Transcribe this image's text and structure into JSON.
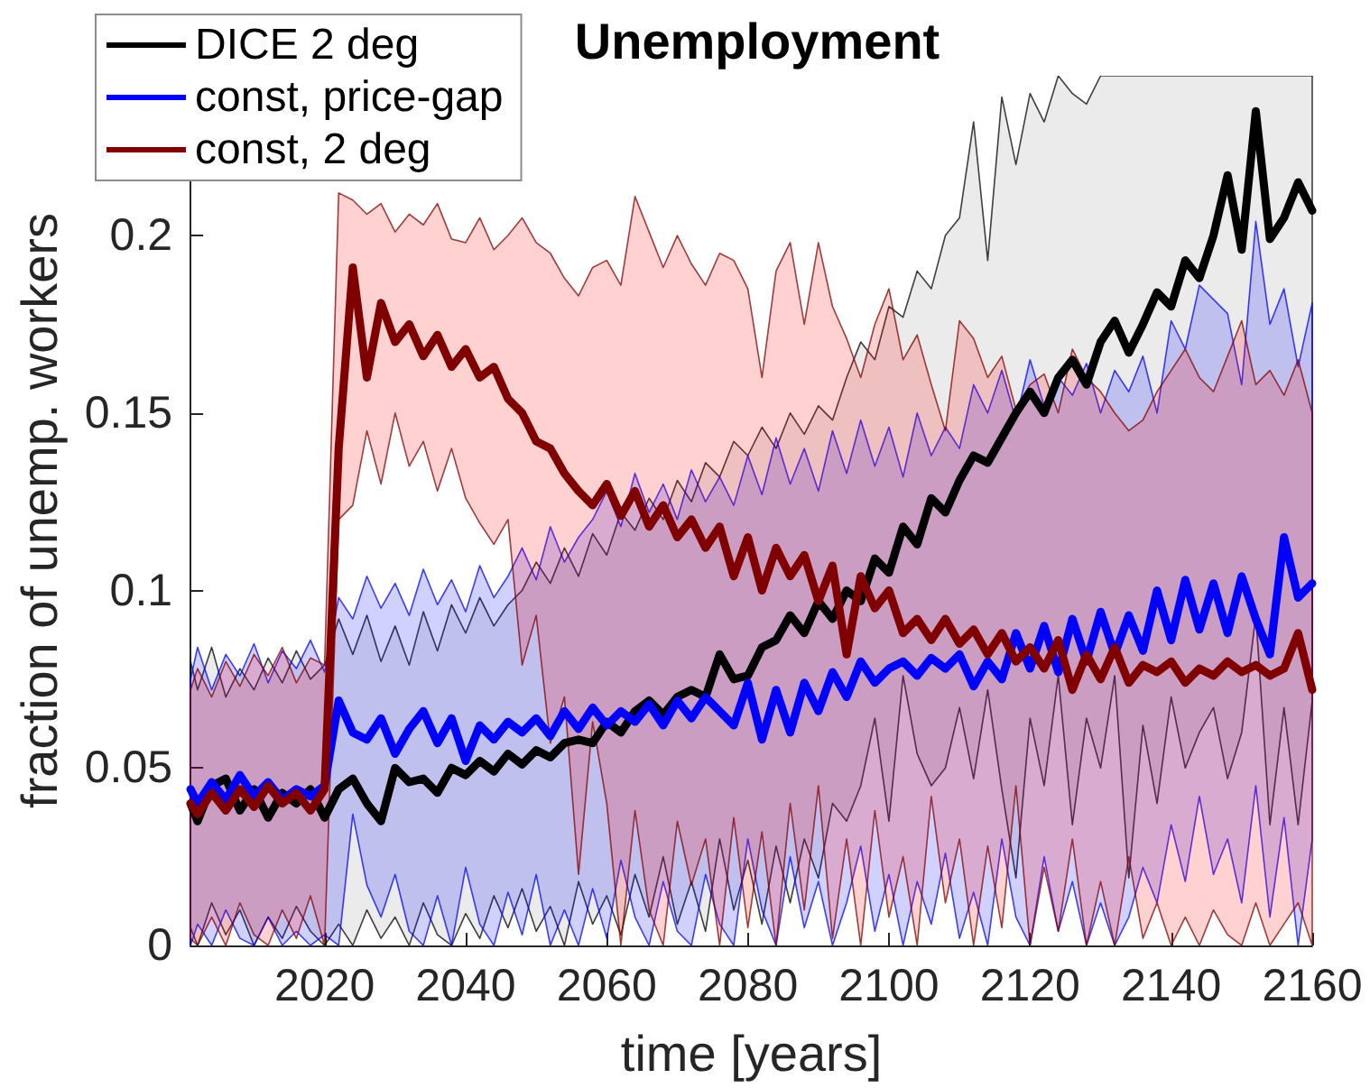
{
  "chart_data": {
    "type": "line",
    "title": "Unemployment",
    "xlabel": "time [years]",
    "ylabel": "fraction of unemp. workers",
    "x": [
      2001,
      2002,
      2004,
      2006,
      2008,
      2010,
      2012,
      2014,
      2016,
      2018,
      2020,
      2022,
      2024,
      2026,
      2028,
      2030,
      2032,
      2034,
      2036,
      2038,
      2040,
      2042,
      2044,
      2046,
      2048,
      2050,
      2052,
      2054,
      2056,
      2058,
      2060,
      2062,
      2064,
      2066,
      2068,
      2070,
      2072,
      2074,
      2076,
      2078,
      2080,
      2082,
      2084,
      2086,
      2088,
      2090,
      2092,
      2094,
      2096,
      2098,
      2100,
      2102,
      2104,
      2106,
      2108,
      2110,
      2112,
      2114,
      2116,
      2118,
      2120,
      2122,
      2124,
      2126,
      2128,
      2130,
      2132,
      2134,
      2136,
      2138,
      2140,
      2142,
      2144,
      2146,
      2148,
      2150,
      2152,
      2154,
      2156,
      2158,
      2160
    ],
    "xlim": [
      2001,
      2160
    ],
    "xticks": [
      2020,
      2040,
      2060,
      2080,
      2100,
      2120,
      2140,
      2160
    ],
    "ylim": [
      0,
      0.245
    ],
    "yticks": [
      0,
      0.05,
      0.1,
      0.15,
      0.2
    ],
    "grid": false,
    "legend": "top left",
    "marker": "none",
    "line_style": "solid",
    "series": [
      {
        "name": "DICE 2 deg",
        "color": "#000000",
        "values": [
          0.04,
          0.035,
          0.045,
          0.047,
          0.038,
          0.044,
          0.036,
          0.043,
          0.04,
          0.044,
          0.036,
          0.044,
          0.047,
          0.04,
          0.035,
          0.05,
          0.046,
          0.047,
          0.043,
          0.05,
          0.048,
          0.052,
          0.049,
          0.054,
          0.051,
          0.055,
          0.053,
          0.057,
          0.058,
          0.057,
          0.063,
          0.06,
          0.066,
          0.069,
          0.065,
          0.07,
          0.072,
          0.07,
          0.082,
          0.075,
          0.076,
          0.084,
          0.086,
          0.093,
          0.088,
          0.097,
          0.092,
          0.1,
          0.097,
          0.109,
          0.105,
          0.118,
          0.113,
          0.126,
          0.122,
          0.131,
          0.138,
          0.136,
          0.143,
          0.15,
          0.156,
          0.15,
          0.16,
          0.165,
          0.158,
          0.17,
          0.176,
          0.167,
          0.175,
          0.184,
          0.18,
          0.193,
          0.188,
          0.2,
          0.217,
          0.196,
          0.235,
          0.199,
          0.205,
          0.215,
          0.207
        ],
        "lower": [
          0.005,
          0,
          0.012,
          0.003,
          0.01,
          0,
          0.008,
          0.002,
          0.011,
          0.004,
          0,
          0.006,
          0,
          0.01,
          0.002,
          0.008,
          0,
          0.012,
          0.003,
          0,
          0.009,
          0.002,
          0.014,
          0.005,
          0.016,
          0.004,
          0.011,
          0,
          0.018,
          0.006,
          0.014,
          0.003,
          0.02,
          0.008,
          0.025,
          0.006,
          0.018,
          0.004,
          0.03,
          0.01,
          0.024,
          0.006,
          0.028,
          0.012,
          0.03,
          0.019,
          0.04,
          0.035,
          0.045,
          0.064,
          0.035,
          0.076,
          0.054,
          0.045,
          0.05,
          0.067,
          0.047,
          0.072,
          0.044,
          0.019,
          0.064,
          0.045,
          0.076,
          0.034,
          0.064,
          0.05,
          0.076,
          0.019,
          0.062,
          0.04,
          0.07,
          0.05,
          0.06,
          0.067,
          0.047,
          0.06,
          0.093,
          0.034,
          0.067,
          0.034,
          0.069
        ],
        "upper": [
          0.08,
          0.072,
          0.084,
          0.07,
          0.078,
          0.072,
          0.081,
          0.074,
          0.083,
          0.075,
          0.079,
          0.092,
          0.082,
          0.093,
          0.08,
          0.09,
          0.079,
          0.094,
          0.083,
          0.096,
          0.088,
          0.098,
          0.09,
          0.096,
          0.1,
          0.108,
          0.102,
          0.112,
          0.104,
          0.116,
          0.11,
          0.122,
          0.117,
          0.126,
          0.12,
          0.131,
          0.125,
          0.136,
          0.132,
          0.142,
          0.138,
          0.146,
          0.14,
          0.15,
          0.144,
          0.152,
          0.148,
          0.16,
          0.17,
          0.165,
          0.18,
          0.177,
          0.19,
          0.185,
          0.2,
          0.205,
          0.232,
          0.193,
          0.239,
          0.22,
          0.24,
          0.232,
          0.245,
          0.24,
          0.237,
          0.245,
          0.245,
          0.245,
          0.245,
          0.245,
          0.245,
          0.245,
          0.245,
          0.245,
          0.245,
          0.245,
          0.245,
          0.245,
          0.245,
          0.245,
          0.245
        ]
      },
      {
        "name": "const, price-gap",
        "color": "#0000ff",
        "values": [
          0.044,
          0.04,
          0.046,
          0.041,
          0.048,
          0.042,
          0.046,
          0.041,
          0.044,
          0.042,
          0.045,
          0.069,
          0.06,
          0.058,
          0.064,
          0.054,
          0.061,
          0.066,
          0.057,
          0.064,
          0.052,
          0.062,
          0.058,
          0.063,
          0.06,
          0.064,
          0.059,
          0.066,
          0.061,
          0.067,
          0.062,
          0.066,
          0.063,
          0.068,
          0.062,
          0.069,
          0.064,
          0.07,
          0.066,
          0.062,
          0.074,
          0.058,
          0.072,
          0.06,
          0.074,
          0.066,
          0.077,
          0.07,
          0.08,
          0.074,
          0.078,
          0.08,
          0.076,
          0.081,
          0.078,
          0.082,
          0.073,
          0.08,
          0.075,
          0.088,
          0.078,
          0.09,
          0.077,
          0.092,
          0.08,
          0.094,
          0.082,
          0.093,
          0.083,
          0.1,
          0.086,
          0.103,
          0.089,
          0.102,
          0.088,
          0.104,
          0.092,
          0.082,
          0.115,
          0.098,
          0.102
        ],
        "lower": [
          0,
          0.006,
          0,
          0.01,
          0.002,
          0,
          0.008,
          0,
          0.004,
          0,
          0.003,
          0,
          0.037,
          0.017,
          0.008,
          0.02,
          0.004,
          0,
          0.014,
          0,
          0.022,
          0.006,
          0,
          0.015,
          0.003,
          0.02,
          0,
          0.01,
          0,
          0.016,
          0.002,
          0.024,
          0.008,
          0,
          0.018,
          0.004,
          0,
          0.02,
          0.006,
          0,
          0.03,
          0.01,
          0,
          0.025,
          0.005,
          0.018,
          0,
          0.012,
          0.028,
          0.004,
          0.02,
          0,
          0.018,
          0.006,
          0.026,
          0.002,
          0.015,
          0,
          0.03,
          0.008,
          0,
          0.025,
          0.004,
          0.018,
          0,
          0.012,
          0,
          0.008,
          0.022,
          0.012,
          0.034,
          0.018,
          0.042,
          0.02,
          0.03,
          0.012,
          0.045,
          0.008,
          0.036,
          0,
          0.03
        ],
        "upper": [
          0.075,
          0.084,
          0.072,
          0.082,
          0.076,
          0.085,
          0.074,
          0.083,
          0.078,
          0.086,
          0.077,
          0.098,
          0.092,
          0.104,
          0.095,
          0.102,
          0.093,
          0.106,
          0.096,
          0.103,
          0.094,
          0.107,
          0.098,
          0.104,
          0.112,
          0.103,
          0.118,
          0.108,
          0.115,
          0.12,
          0.128,
          0.118,
          0.133,
          0.122,
          0.13,
          0.12,
          0.134,
          0.125,
          0.132,
          0.124,
          0.138,
          0.127,
          0.143,
          0.13,
          0.14,
          0.128,
          0.145,
          0.133,
          0.148,
          0.135,
          0.146,
          0.132,
          0.15,
          0.138,
          0.146,
          0.14,
          0.158,
          0.15,
          0.162,
          0.148,
          0.165,
          0.152,
          0.16,
          0.155,
          0.164,
          0.15,
          0.162,
          0.156,
          0.166,
          0.15,
          0.176,
          0.168,
          0.186,
          0.182,
          0.178,
          0.158,
          0.204,
          0.175,
          0.185,
          0.163,
          0.181
        ]
      },
      {
        "name": "const, 2 deg",
        "color": "#800000",
        "values": [
          0.04,
          0.037,
          0.043,
          0.038,
          0.044,
          0.039,
          0.045,
          0.04,
          0.043,
          0.038,
          0.044,
          0.14,
          0.191,
          0.16,
          0.181,
          0.17,
          0.175,
          0.166,
          0.172,
          0.163,
          0.168,
          0.16,
          0.163,
          0.154,
          0.15,
          0.142,
          0.14,
          0.133,
          0.128,
          0.124,
          0.13,
          0.121,
          0.128,
          0.118,
          0.124,
          0.115,
          0.12,
          0.112,
          0.118,
          0.104,
          0.115,
          0.1,
          0.112,
          0.104,
          0.11,
          0.097,
          0.107,
          0.082,
          0.104,
          0.095,
          0.1,
          0.088,
          0.092,
          0.086,
          0.092,
          0.085,
          0.089,
          0.082,
          0.088,
          0.08,
          0.084,
          0.078,
          0.086,
          0.072,
          0.082,
          0.075,
          0.084,
          0.074,
          0.079,
          0.077,
          0.08,
          0.074,
          0.078,
          0.076,
          0.08,
          0.077,
          0.079,
          0.076,
          0.078,
          0.088,
          0.072
        ],
        "lower": [
          0.002,
          0,
          0.008,
          0,
          0.012,
          0.003,
          0,
          0.01,
          0.002,
          0.014,
          0,
          0.12,
          0.124,
          0.145,
          0.13,
          0.15,
          0.135,
          0.142,
          0.128,
          0.14,
          0.126,
          0.119,
          0.113,
          0.12,
          0.079,
          0.093,
          0.057,
          0.07,
          0.02,
          0.063,
          0.04,
          0,
          0.038,
          0.01,
          0,
          0.035,
          0.017,
          0.03,
          0,
          0.036,
          0.005,
          0.032,
          0,
          0.04,
          0.01,
          0.045,
          0.002,
          0.03,
          0,
          0.038,
          0.008,
          0.025,
          0,
          0.042,
          0.012,
          0.03,
          0,
          0.028,
          0.005,
          0.045,
          0,
          0.022,
          0.004,
          0.03,
          0,
          0.018,
          0,
          0.025,
          0.002,
          0.012,
          0,
          0.008,
          0,
          0.01,
          0.003,
          0,
          0.012,
          0,
          0.006,
          0.012,
          0
        ],
        "upper": [
          0.072,
          0.078,
          0.07,
          0.08,
          0.073,
          0.082,
          0.076,
          0.084,
          0.074,
          0.081,
          0.079,
          0.212,
          0.21,
          0.206,
          0.209,
          0.201,
          0.206,
          0.203,
          0.209,
          0.199,
          0.198,
          0.205,
          0.196,
          0.2,
          0.205,
          0.198,
          0.195,
          0.188,
          0.183,
          0.191,
          0.193,
          0.186,
          0.211,
          0.201,
          0.191,
          0.2,
          0.192,
          0.186,
          0.195,
          0.193,
          0.185,
          0.16,
          0.19,
          0.198,
          0.175,
          0.198,
          0.18,
          0.171,
          0.16,
          0.175,
          0.185,
          0.165,
          0.172,
          0.158,
          0.145,
          0.176,
          0.171,
          0.16,
          0.166,
          0.151,
          0.158,
          0.161,
          0.15,
          0.168,
          0.16,
          0.156,
          0.15,
          0.145,
          0.148,
          0.156,
          0.162,
          0.168,
          0.16,
          0.156,
          0.166,
          0.176,
          0.158,
          0.162,
          0.155,
          0.165,
          0.15
        ]
      }
    ]
  }
}
